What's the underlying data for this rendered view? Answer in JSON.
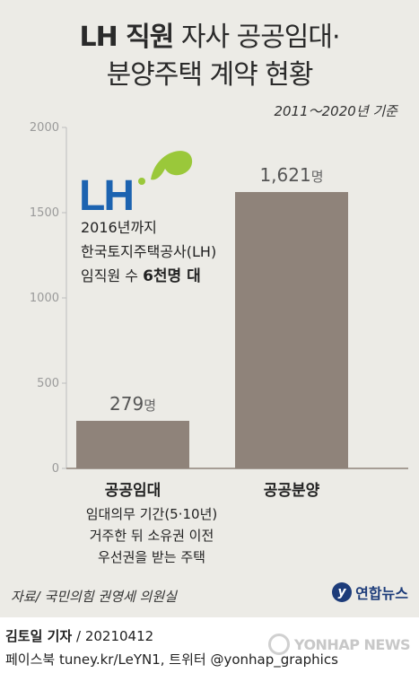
{
  "title": {
    "line1_bold": "LH 직원",
    "line1_rest": " 자사 공공임대·",
    "line2": "분양주택 계약 현황"
  },
  "period": "2011～2020년 기준",
  "chart_data": {
    "type": "bar",
    "categories": [
      "공공임대",
      "공공분양"
    ],
    "values": [
      279,
      1621
    ],
    "value_labels": [
      "279",
      "1,621"
    ],
    "unit": "명",
    "ylim": [
      0,
      2000
    ],
    "yticks": [
      0,
      500,
      1000,
      1500,
      2000
    ],
    "ytick_labels": [
      "0",
      "500",
      "1000",
      "1500",
      "2000"
    ],
    "bar_color": "#8f837a",
    "grid": false
  },
  "logo": {
    "text": "LH",
    "text_color": "#1c63b0",
    "accent_color": "#9ac83a"
  },
  "note": {
    "line1": "2016년까지",
    "line2": "한국토지주택공사(LH)",
    "line3_prefix": "임직원 수 ",
    "line3_bold": "6천명 대"
  },
  "category_desc": {
    "line1": "임대의무 기간(5·10년)",
    "line2": "거주한 뒤 소유권 이전",
    "line3": "우선권을 받는 주택"
  },
  "source": "자료/ 국민의힘 권영세 의원실",
  "brand": "연합뉴스",
  "credit": {
    "name": "김토일 기자",
    "sep": " / ",
    "date": "20210412"
  },
  "social": "페이스북 tuney.kr/LeYN1, 트위터 @yonhap_graphics",
  "watermark": "YONHAP NEWS"
}
